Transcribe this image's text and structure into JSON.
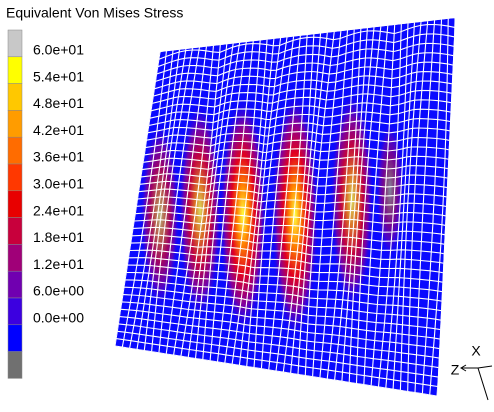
{
  "legend": {
    "title": "Equivalent Von Mises Stress",
    "labels": [
      "6.0e+01",
      "5.4e+01",
      "4.8e+01",
      "4.2e+01",
      "3.6e+01",
      "3.0e+01",
      "2.4e+01",
      "1.8e+01",
      "1.2e+01",
      "6.0e+00",
      "0.0e+00"
    ]
  },
  "triad": {
    "x": "X",
    "z": "Z"
  }
}
